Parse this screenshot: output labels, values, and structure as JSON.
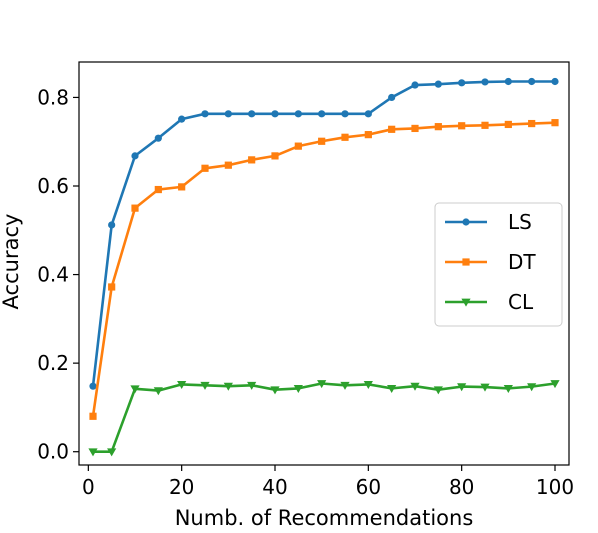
{
  "chart_data": {
    "type": "line",
    "xlabel": "Numb. of Recommendations",
    "ylabel": "Accuracy",
    "xlim": [
      -2,
      103
    ],
    "ylim": [
      -0.03,
      0.88
    ],
    "xticks": [
      0,
      20,
      40,
      60,
      80,
      100
    ],
    "xtick_labels": [
      "0",
      "20",
      "40",
      "60",
      "80",
      "100"
    ],
    "yticks": [
      0.0,
      0.2,
      0.4,
      0.6,
      0.8
    ],
    "ytick_labels": [
      "0.0",
      "0.2",
      "0.4",
      "0.6",
      "0.8"
    ],
    "grid": false,
    "legend_position": "center-right",
    "x": [
      1,
      5,
      10,
      15,
      20,
      25,
      30,
      35,
      40,
      45,
      50,
      55,
      60,
      65,
      70,
      75,
      80,
      85,
      90,
      95,
      100
    ],
    "series": [
      {
        "name": "LS",
        "color": "#1f77b4",
        "marker": "circle",
        "values": [
          0.148,
          0.512,
          0.668,
          0.708,
          0.751,
          0.763,
          0.763,
          0.763,
          0.763,
          0.763,
          0.763,
          0.763,
          0.763,
          0.8,
          0.828,
          0.83,
          0.833,
          0.835,
          0.836,
          0.836,
          0.836
        ]
      },
      {
        "name": "DT",
        "color": "#ff7f0e",
        "marker": "square",
        "values": [
          0.08,
          0.372,
          0.55,
          0.592,
          0.598,
          0.64,
          0.647,
          0.659,
          0.668,
          0.69,
          0.701,
          0.71,
          0.716,
          0.728,
          0.73,
          0.734,
          0.736,
          0.737,
          0.739,
          0.741,
          0.743
        ]
      },
      {
        "name": "CL",
        "color": "#2ca02c",
        "marker": "triangle-down",
        "values": [
          0.0,
          0.0,
          0.142,
          0.138,
          0.152,
          0.15,
          0.148,
          0.15,
          0.14,
          0.143,
          0.154,
          0.15,
          0.152,
          0.143,
          0.148,
          0.14,
          0.147,
          0.146,
          0.143,
          0.147,
          0.154
        ]
      }
    ]
  }
}
